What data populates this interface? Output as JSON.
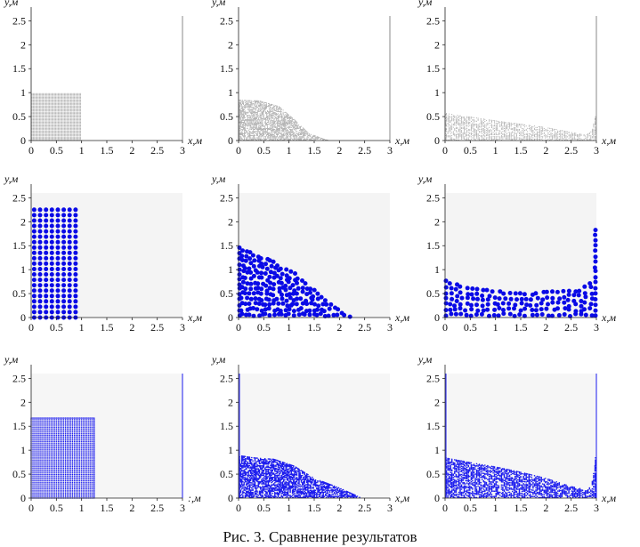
{
  "caption": "Рис. 3. Сравнение результатов",
  "style": {
    "row_colors": [
      "#9a9a9a",
      "#0a0ae6",
      "#1a1aee"
    ],
    "plot_background": [
      "#ffffff",
      "#f4f4f4",
      "#f6f6f6"
    ]
  },
  "axes": {
    "x_label": "x,м",
    "y_label": "y,м",
    "x_range": [
      0,
      3
    ],
    "y_range": [
      0,
      2.6
    ],
    "x_ticks": [
      "0",
      "0.5",
      "1",
      "1.5",
      "2",
      "2.5",
      "3"
    ],
    "y_ticks": [
      "0",
      "0.5",
      "1",
      "1.5",
      "2",
      "2.5"
    ]
  },
  "chart_data": [
    {
      "type": "scatter",
      "row": 0,
      "col": 0,
      "particle_size": 0.5,
      "distribution": "block",
      "column_width": 1.0,
      "column_height": 1.0,
      "right_wall": true
    },
    {
      "type": "scatter",
      "row": 0,
      "col": 1,
      "particle_size": 0.5,
      "distribution": "profile",
      "profile": [
        [
          0,
          0.85
        ],
        [
          0.4,
          0.84
        ],
        [
          0.8,
          0.72
        ],
        [
          1.1,
          0.45
        ],
        [
          1.4,
          0.15
        ],
        [
          1.8,
          0.0
        ]
      ],
      "right_wall": true
    },
    {
      "type": "scatter",
      "row": 0,
      "col": 2,
      "particle_size": 0.5,
      "distribution": "profile",
      "profile": [
        [
          0,
          0.58
        ],
        [
          0.5,
          0.5
        ],
        [
          1.0,
          0.42
        ],
        [
          1.5,
          0.35
        ],
        [
          2.0,
          0.28
        ],
        [
          2.5,
          0.18
        ],
        [
          2.8,
          0.12
        ],
        [
          2.9,
          0.2
        ],
        [
          3.0,
          0.6
        ]
      ],
      "right_wall": true
    },
    {
      "type": "scatter",
      "row": 1,
      "col": 0,
      "particle_size": 2.5,
      "distribution": "lattice",
      "nx": 8,
      "ny": 21,
      "x_start": 0.06,
      "x_end": 0.88,
      "y_start": 0.0,
      "y_end": 2.25
    },
    {
      "type": "scatter",
      "row": 1,
      "col": 1,
      "particle_size": 2.5,
      "distribution": "profile",
      "profile": [
        [
          0,
          1.5
        ],
        [
          0.3,
          1.38
        ],
        [
          0.7,
          1.2
        ],
        [
          1.1,
          0.95
        ],
        [
          1.5,
          0.6
        ],
        [
          1.9,
          0.25
        ],
        [
          2.2,
          0.05
        ]
      ]
    },
    {
      "type": "scatter",
      "row": 1,
      "col": 2,
      "particle_size": 2.5,
      "distribution": "profile",
      "profile": [
        [
          0,
          0.8
        ],
        [
          0.3,
          0.7
        ],
        [
          0.8,
          0.62
        ],
        [
          1.3,
          0.55
        ],
        [
          1.8,
          0.55
        ],
        [
          2.3,
          0.6
        ],
        [
          2.7,
          0.62
        ],
        [
          2.9,
          0.8
        ],
        [
          3.0,
          1.9
        ]
      ]
    },
    {
      "type": "scatter",
      "row": 2,
      "col": 0,
      "particle_size": 0.7,
      "distribution": "lattice",
      "nx": 36,
      "ny": 52,
      "x_start": 0.0,
      "x_end": 1.25,
      "y_start": 0.0,
      "y_end": 1.67,
      "right_wall": true,
      "x_label_override": ":,м"
    },
    {
      "type": "scatter",
      "row": 2,
      "col": 1,
      "particle_size": 0.8,
      "distribution": "profile",
      "profile": [
        [
          0,
          0.9
        ],
        [
          0.3,
          0.85
        ],
        [
          0.7,
          0.82
        ],
        [
          1.1,
          0.68
        ],
        [
          1.5,
          0.42
        ],
        [
          2.0,
          0.22
        ],
        [
          2.4,
          0.03
        ]
      ],
      "left_wall": true
    },
    {
      "type": "scatter",
      "row": 2,
      "col": 2,
      "particle_size": 0.8,
      "distribution": "profile",
      "profile": [
        [
          0,
          0.85
        ],
        [
          0.5,
          0.75
        ],
        [
          1.0,
          0.66
        ],
        [
          1.5,
          0.55
        ],
        [
          2.0,
          0.42
        ],
        [
          2.5,
          0.25
        ],
        [
          2.8,
          0.18
        ],
        [
          2.9,
          0.25
        ],
        [
          3.0,
          0.85
        ]
      ],
      "left_wall": true,
      "right_wall": true
    }
  ]
}
